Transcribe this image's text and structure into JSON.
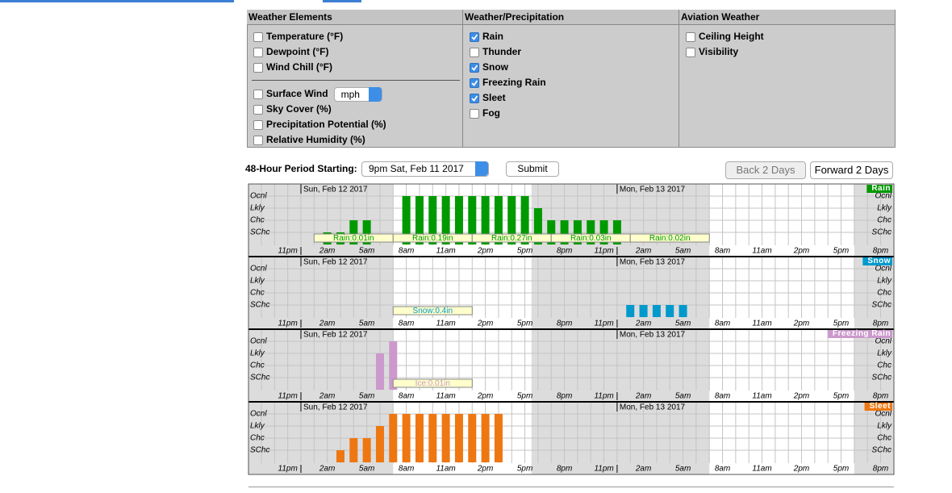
{
  "menu": {
    "columns": [
      {
        "title": "Weather Elements",
        "groups": [
          [
            {
              "label": "Temperature (°F)",
              "checked": false
            },
            {
              "label": "Dewpoint (°F)",
              "checked": false
            },
            {
              "label": "Wind Chill (°F)",
              "checked": false
            }
          ],
          [
            {
              "label": "Surface Wind",
              "checked": false,
              "select": "mph"
            },
            {
              "label": "Sky Cover (%)",
              "checked": false
            },
            {
              "label": "Precipitation Potential (%)",
              "checked": false
            },
            {
              "label": "Relative Humidity (%)",
              "checked": false
            }
          ]
        ]
      },
      {
        "title": "Weather/Precipitation",
        "groups": [
          [
            {
              "label": "Rain",
              "checked": true
            },
            {
              "label": "Thunder",
              "checked": false
            },
            {
              "label": "Snow",
              "checked": true
            },
            {
              "label": "Freezing Rain",
              "checked": true
            },
            {
              "label": "Sleet",
              "checked": true
            },
            {
              "label": "Fog",
              "checked": false
            }
          ]
        ]
      },
      {
        "title": "Aviation Weather",
        "groups": [
          [
            {
              "label": "Ceiling Height",
              "checked": false
            },
            {
              "label": "Visibility",
              "checked": false
            }
          ]
        ]
      }
    ]
  },
  "controls": {
    "period_label": "48-Hour Period Starting:",
    "period_value": "9pm Sat, Feb 11 2017",
    "submit": "Submit",
    "back": "Back 2 Days",
    "forward": "Forward 2 Days"
  },
  "chart_data": {
    "type": "bar",
    "levels": [
      "Ocnl",
      "Lkly",
      "Chc",
      "SChc"
    ],
    "categories": [
      null,
      null,
      "11pm",
      null,
      null,
      "2am",
      null,
      null,
      "5am",
      null,
      null,
      "8am",
      null,
      null,
      "11am",
      null,
      null,
      "2pm",
      null,
      null,
      "5pm",
      null,
      null,
      "8pm",
      null,
      null,
      "11pm",
      null,
      null,
      "2am",
      null,
      null,
      "5am",
      null,
      null,
      "8am",
      null,
      null,
      "11am",
      null,
      null,
      "2pm",
      null,
      null,
      "5pm",
      null,
      null,
      "8pm"
    ],
    "dates": [
      null,
      null,
      null,
      "Sun, Feb 12 2017",
      null,
      null,
      null,
      null,
      null,
      null,
      null,
      null,
      null,
      null,
      null,
      null,
      null,
      null,
      null,
      null,
      null,
      null,
      null,
      null,
      null,
      null,
      null,
      "Mon, Feb 13 2017",
      null,
      null,
      null,
      null,
      null,
      null,
      null,
      null,
      null,
      null,
      null,
      null,
      null,
      null,
      null,
      null,
      null,
      null,
      null,
      null
    ],
    "series": [
      {
        "name": "Rain",
        "color": "#009900",
        "values": [
          null,
          null,
          null,
          null,
          null,
          "SChc",
          "SChc",
          "Chc",
          "Chc",
          null,
          null,
          "Ocnl",
          "Ocnl",
          "Ocnl",
          "Ocnl",
          "Ocnl",
          "Ocnl",
          "Ocnl",
          "Ocnl",
          "Ocnl",
          "Ocnl",
          "Lkly",
          "Chc",
          "Chc",
          "Chc",
          "Chc",
          "Chc",
          "Chc",
          null,
          null,
          null,
          null,
          null,
          null,
          null,
          null,
          null,
          null,
          null,
          null,
          null,
          null,
          null,
          null,
          null,
          null,
          null,
          null
        ],
        "amounts": [
          null,
          null,
          null,
          null,
          "Rain:0.01in",
          null,
          null,
          null,
          null,
          null,
          "Rain:0.19in",
          null,
          null,
          null,
          null,
          null,
          "Rain:0.27in",
          null,
          null,
          null,
          null,
          null,
          "Rain:0.03in",
          null,
          null,
          null,
          null,
          null,
          "Rain:0.02in",
          null,
          null,
          null,
          null,
          null,
          null,
          null,
          null,
          null,
          null,
          null,
          null,
          null,
          null,
          null,
          null,
          null,
          null,
          null
        ]
      },
      {
        "name": "Snow",
        "color": "#0099cc",
        "values": [
          null,
          null,
          null,
          null,
          null,
          null,
          null,
          null,
          null,
          null,
          null,
          null,
          null,
          null,
          null,
          null,
          null,
          null,
          null,
          null,
          null,
          null,
          null,
          null,
          null,
          null,
          null,
          null,
          "SChc",
          "SChc",
          "SChc",
          "SChc",
          "SChc",
          null,
          null,
          null,
          null,
          null,
          null,
          null,
          null,
          null,
          null,
          null,
          null,
          null,
          null,
          null
        ],
        "amounts": [
          null,
          null,
          null,
          null,
          null,
          null,
          null,
          null,
          null,
          null,
          "Snow:0.4in",
          null,
          null,
          null,
          null,
          null,
          null,
          null,
          null,
          null,
          null,
          null,
          null,
          null,
          null,
          null,
          null,
          null,
          null,
          null,
          null,
          null,
          null,
          null,
          null,
          null,
          null,
          null,
          null,
          null,
          null,
          null,
          null,
          null,
          null,
          null,
          null,
          null
        ]
      },
      {
        "name": "Freezing Rain",
        "color": "#cc99cc",
        "values": [
          null,
          null,
          null,
          null,
          null,
          null,
          null,
          null,
          null,
          "Lkly",
          "Ocnl",
          null,
          null,
          null,
          null,
          null,
          null,
          null,
          null,
          null,
          null,
          null,
          null,
          null,
          null,
          null,
          null,
          null,
          null,
          null,
          null,
          null,
          null,
          null,
          null,
          null,
          null,
          null,
          null,
          null,
          null,
          null,
          null,
          null,
          null,
          null,
          null,
          null
        ],
        "amounts": [
          null,
          null,
          null,
          null,
          null,
          null,
          null,
          null,
          null,
          null,
          "Ice:0.01in",
          null,
          null,
          null,
          null,
          null,
          null,
          null,
          null,
          null,
          null,
          null,
          null,
          null,
          null,
          null,
          null,
          null,
          null,
          null,
          null,
          null,
          null,
          null,
          null,
          null,
          null,
          null,
          null,
          null,
          null,
          null,
          null,
          null,
          null,
          null,
          null,
          null
        ]
      },
      {
        "name": "Sleet",
        "color": "#ee7711",
        "values": [
          null,
          null,
          null,
          null,
          null,
          null,
          "SChc",
          "Chc",
          "Chc",
          "Lkly",
          "Ocnl",
          "Ocnl",
          "Ocnl",
          "Ocnl",
          "Ocnl",
          "Ocnl",
          "Ocnl",
          "Ocnl",
          "Ocnl",
          null,
          null,
          null,
          null,
          null,
          null,
          null,
          null,
          null,
          null,
          null,
          null,
          null,
          null,
          null,
          null,
          null,
          null,
          null,
          null,
          null,
          null,
          null,
          null,
          null,
          null,
          null,
          null,
          null
        ]
      }
    ]
  }
}
